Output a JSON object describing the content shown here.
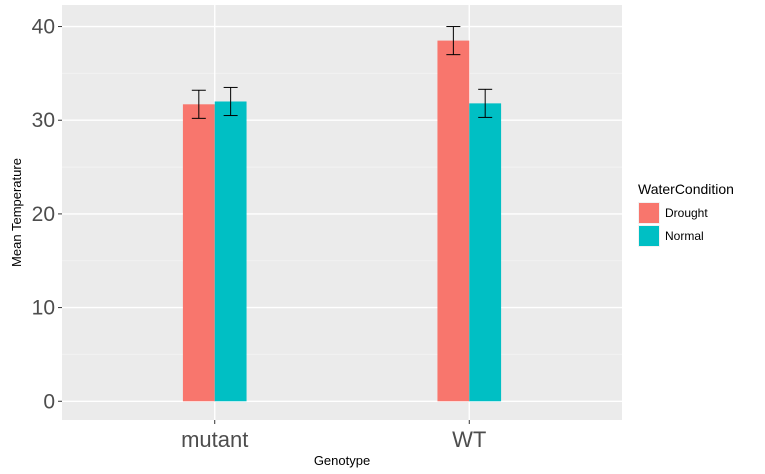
{
  "chart_data": {
    "type": "bar",
    "xlabel": "Genotype",
    "ylabel": "Mean Temperature",
    "categories": [
      "mutant",
      "WT"
    ],
    "ylim": [
      -2.0,
      42.3
    ],
    "yticks": [
      0,
      10,
      20,
      30,
      40
    ],
    "grid": true,
    "legend": {
      "title": "WaterCondition",
      "placement": "right"
    },
    "series": [
      {
        "name": "Drought",
        "color": "#F8766D",
        "values": [
          31.7,
          38.5
        ],
        "error_low": [
          30.2,
          37.0
        ],
        "error_high": [
          33.2,
          40.0
        ]
      },
      {
        "name": "Normal",
        "color": "#00BFC4",
        "values": [
          32.0,
          31.8
        ],
        "error_low": [
          30.5,
          30.3
        ],
        "error_high": [
          33.5,
          33.3
        ]
      }
    ]
  },
  "style": {
    "panel_bg": "#EBEBEB",
    "grid_major": "#FFFFFF",
    "grid_minor": "#F2F2F2",
    "errorbar": "#000000"
  }
}
